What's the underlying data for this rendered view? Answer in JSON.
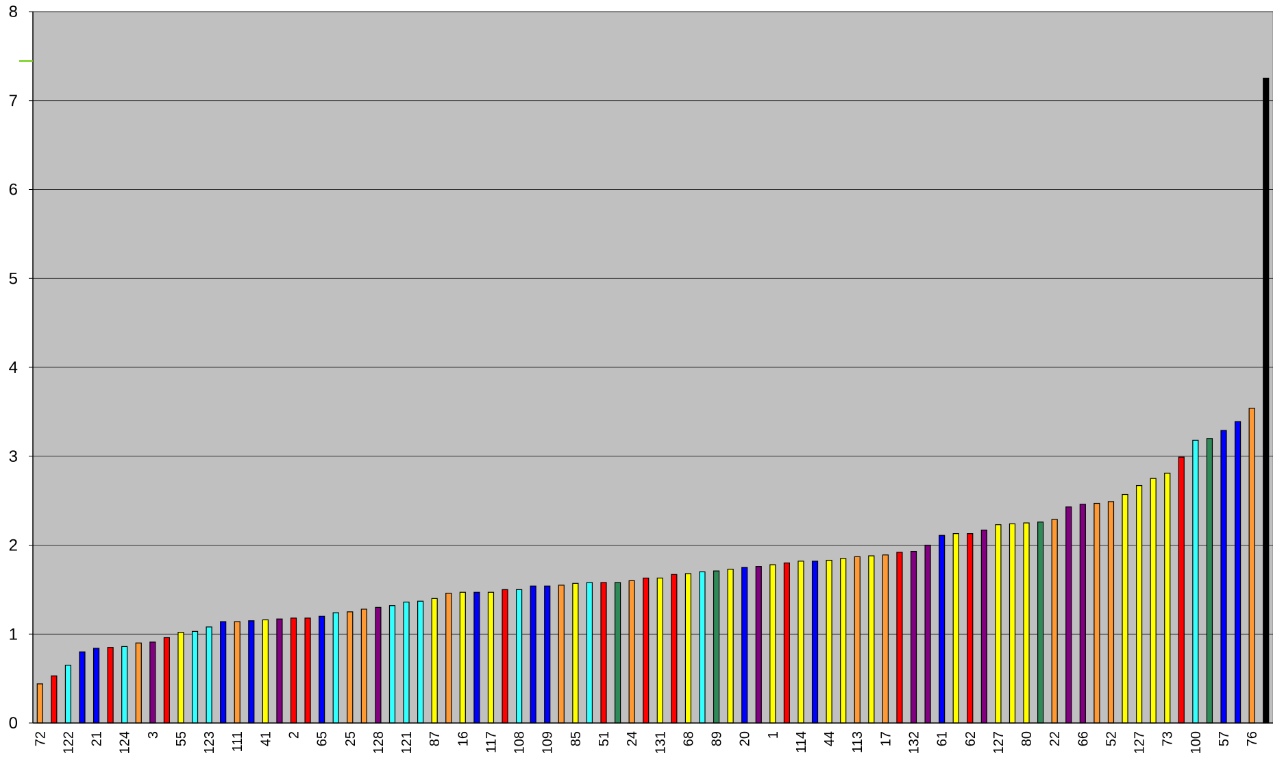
{
  "chart_data": {
    "type": "bar",
    "title": "",
    "xlabel": "",
    "ylabel": "",
    "ylim": [
      0,
      8
    ],
    "yticks": [
      "0",
      "1",
      "2",
      "3",
      "4",
      "5",
      "6",
      "7",
      "8"
    ],
    "grid": true,
    "background_color": "#c0c0c0",
    "x_tick_labels": [
      "72",
      "122",
      "21",
      "124",
      "3",
      "55",
      "123",
      "111",
      "41",
      "2",
      "65",
      "25",
      "128",
      "121",
      "87",
      "16",
      "117",
      "108",
      "109",
      "85",
      "51",
      "24",
      "131",
      "68",
      "89",
      "20",
      "1",
      "114",
      "44",
      "113",
      "17",
      "132",
      "61",
      "62",
      "127",
      "80",
      "22",
      "66",
      "52",
      "127",
      "73",
      "100",
      "57",
      "76"
    ],
    "values": [
      0.44,
      0.53,
      0.65,
      0.8,
      0.84,
      0.85,
      0.86,
      0.9,
      0.91,
      0.96,
      1.02,
      1.03,
      1.08,
      1.14,
      1.14,
      1.15,
      1.16,
      1.17,
      1.18,
      1.18,
      1.2,
      1.24,
      1.25,
      1.28,
      1.3,
      1.32,
      1.36,
      1.37,
      1.4,
      1.46,
      1.47,
      1.47,
      1.47,
      1.5,
      1.5,
      1.54,
      1.54,
      1.55,
      1.57,
      1.58,
      1.58,
      1.58,
      1.6,
      1.63,
      1.63,
      1.67,
      1.68,
      1.7,
      1.71,
      1.73,
      1.75,
      1.76,
      1.78,
      1.8,
      1.82,
      1.82,
      1.83,
      1.85,
      1.87,
      1.88,
      1.89,
      1.92,
      1.93,
      2.0,
      2.11,
      2.13,
      2.13,
      2.17,
      2.23,
      2.24,
      2.25,
      2.26,
      2.29,
      2.43,
      2.46,
      2.47,
      2.49,
      2.57,
      2.67,
      2.75,
      2.81,
      2.99,
      3.18,
      3.2,
      3.29,
      3.39,
      3.54,
      7.25
    ],
    "colors": [
      "#ff9933",
      "#ff0000",
      "#33ffff",
      "#0000ff",
      "#0000ff",
      "#ff0000",
      "#33ffff",
      "#ff9933",
      "#800080",
      "#ff0000",
      "#ffff00",
      "#33ffff",
      "#33ffff",
      "#0000ff",
      "#ff9933",
      "#0000ff",
      "#ffff00",
      "#800080",
      "#ff0000",
      "#ff0000",
      "#0000ff",
      "#33ffff",
      "#ff9933",
      "#ff9933",
      "#800080",
      "#33ffff",
      "#33ffff",
      "#33ffff",
      "#ffff00",
      "#ff9933",
      "#ffff00",
      "#0000ff",
      "#ffff00",
      "#ff0000",
      "#33ffff",
      "#0000ff",
      "#0000ff",
      "#ff9933",
      "#ffff00",
      "#33ffff",
      "#ff0000",
      "#2e8b57",
      "#ff9933",
      "#ff0000",
      "#ffff00",
      "#ff0000",
      "#ffff00",
      "#33ffff",
      "#2e8b57",
      "#ffff00",
      "#0000ff",
      "#800080",
      "#ffff00",
      "#ff0000",
      "#ffff00",
      "#0000ff",
      "#ffff00",
      "#ffff00",
      "#ff9933",
      "#ffff00",
      "#ff9933",
      "#ff0000",
      "#800080",
      "#800080",
      "#0000ff",
      "#ffff00",
      "#ff0000",
      "#800080",
      "#ffff00",
      "#ffff00",
      "#ffff00",
      "#2e8b57",
      "#ff9933",
      "#800080",
      "#800080",
      "#ff9933",
      "#ff9933",
      "#ffff00",
      "#ffff00",
      "#ffff00",
      "#ffff00",
      "#ff0000",
      "#33ffff",
      "#2e8b57",
      "#0000ff",
      "#0000ff",
      "#ff9933",
      "#000000"
    ]
  }
}
